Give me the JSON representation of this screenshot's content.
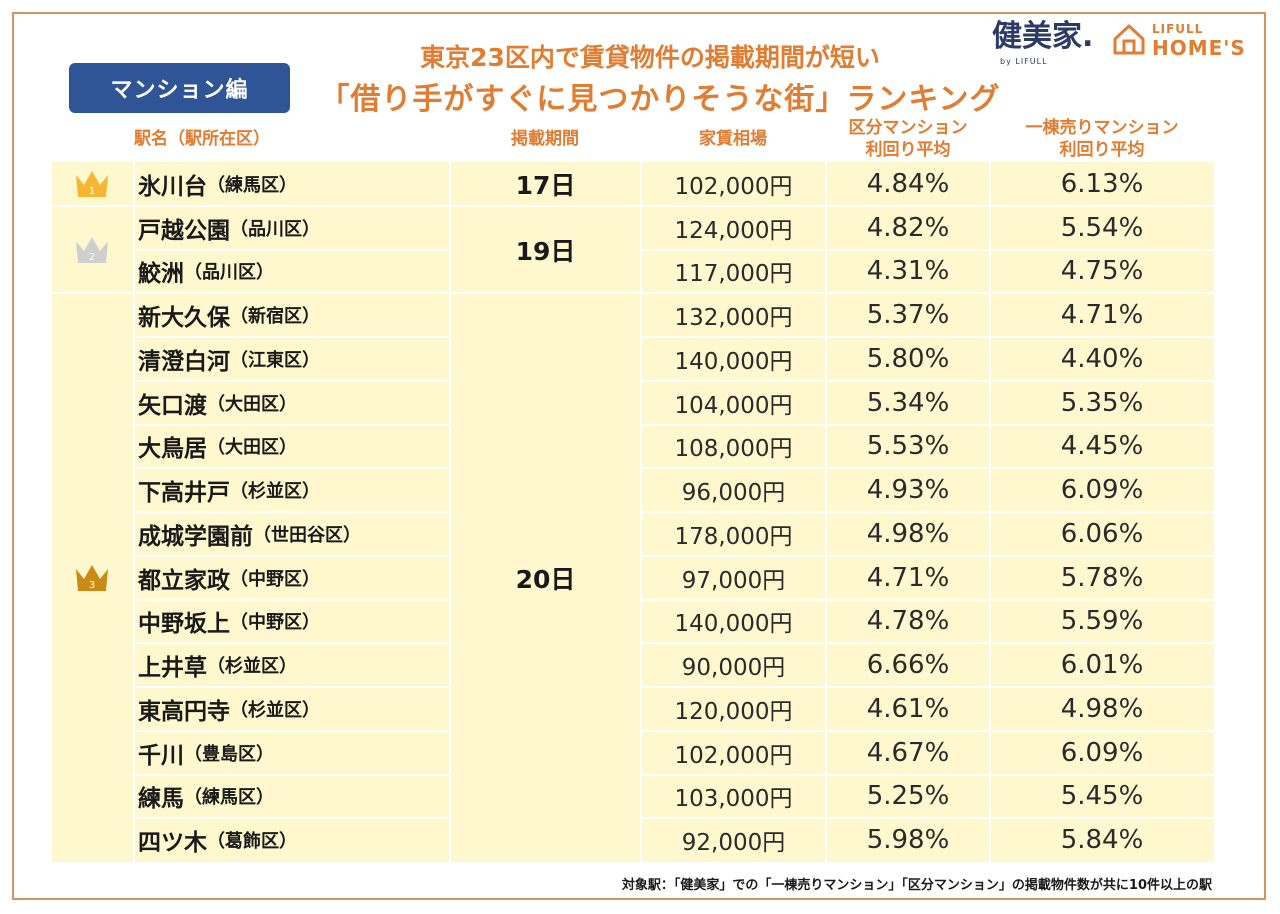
{
  "category_tag": "マンション編",
  "title_line1": "東京23区内で賃貸物件の掲載期間が短い",
  "title_line2": "「借り手がすぐに見つかりそうな街」ランキング",
  "logos": {
    "kenbiya": "健美家.",
    "kenbiya_sub": "by LIFULL",
    "lifull_top": "LIFULL",
    "lifull_bottom": "HOME'S"
  },
  "colors": {
    "accent": "#e17c31",
    "table_bg": "#fff8cf",
    "tag_bg": "#2f5597",
    "gold": "#f5b731",
    "silver": "#cfcfcf",
    "bronze": "#c98a16"
  },
  "headers": {
    "station": "駅名（駅所在区）",
    "period": "掲載期間",
    "rent": "家賃相場",
    "unit_yield_l1": "区分マンション",
    "unit_yield_l2": "利回り平均",
    "whole_yield_l1": "一棟売りマンション",
    "whole_yield_l2": "利回り平均"
  },
  "rank_groups": [
    {
      "rank": "1",
      "period": "17日"
    },
    {
      "rank": "2",
      "period": "19日"
    },
    {
      "rank": "3",
      "period": "20日"
    }
  ],
  "rows": [
    {
      "station": "氷川台",
      "ward": "（練馬区）",
      "rent": "102,000円",
      "unit_yield": "4.84%",
      "whole_yield": "6.13%"
    },
    {
      "station": "戸越公園",
      "ward": "（品川区）",
      "rent": "124,000円",
      "unit_yield": "4.82%",
      "whole_yield": "5.54%"
    },
    {
      "station": "鮫洲",
      "ward": "（品川区）",
      "rent": "117,000円",
      "unit_yield": "4.31%",
      "whole_yield": "4.75%"
    },
    {
      "station": "新大久保",
      "ward": "（新宿区）",
      "rent": "132,000円",
      "unit_yield": "5.37%",
      "whole_yield": "4.71%"
    },
    {
      "station": "清澄白河",
      "ward": "（江東区）",
      "rent": "140,000円",
      "unit_yield": "5.80%",
      "whole_yield": "4.40%"
    },
    {
      "station": "矢口渡",
      "ward": "（大田区）",
      "rent": "104,000円",
      "unit_yield": "5.34%",
      "whole_yield": "5.35%"
    },
    {
      "station": "大鳥居",
      "ward": "（大田区）",
      "rent": "108,000円",
      "unit_yield": "5.53%",
      "whole_yield": "4.45%"
    },
    {
      "station": "下高井戸",
      "ward": "（杉並区）",
      "rent": "96,000円",
      "unit_yield": "4.93%",
      "whole_yield": "6.09%"
    },
    {
      "station": "成城学園前",
      "ward": "（世田谷区）",
      "rent": "178,000円",
      "unit_yield": "4.98%",
      "whole_yield": "6.06%"
    },
    {
      "station": "都立家政",
      "ward": "（中野区）",
      "rent": "97,000円",
      "unit_yield": "4.71%",
      "whole_yield": "5.78%"
    },
    {
      "station": "中野坂上",
      "ward": "（中野区）",
      "rent": "140,000円",
      "unit_yield": "4.78%",
      "whole_yield": "5.59%"
    },
    {
      "station": "上井草",
      "ward": "（杉並区）",
      "rent": "90,000円",
      "unit_yield": "6.66%",
      "whole_yield": "6.01%"
    },
    {
      "station": "東高円寺",
      "ward": "（杉並区）",
      "rent": "120,000円",
      "unit_yield": "4.61%",
      "whole_yield": "4.98%"
    },
    {
      "station": "千川",
      "ward": "（豊島区）",
      "rent": "102,000円",
      "unit_yield": "4.67%",
      "whole_yield": "6.09%"
    },
    {
      "station": "練馬",
      "ward": "（練馬区）",
      "rent": "103,000円",
      "unit_yield": "5.25%",
      "whole_yield": "5.45%"
    },
    {
      "station": "四ツ木",
      "ward": "（葛飾区）",
      "rent": "92,000円",
      "unit_yield": "5.98%",
      "whole_yield": "5.84%"
    }
  ],
  "footnote": "対象駅：「健美家」での「一棟売りマンション」「区分マンション」の掲載物件数が共に10件以上の駅",
  "chart_data": {
    "type": "table",
    "title": "東京23区内で賃貸物件の掲載期間が短い「借り手がすぐに見つかりそうな街」ランキング",
    "columns": [
      "駅名（駅所在区）",
      "掲載期間",
      "家賃相場",
      "区分マンション利回り平均",
      "一棟売りマンション利回り平均"
    ],
    "ranks": [
      1,
      2,
      2,
      3,
      3,
      3,
      3,
      3,
      3,
      3,
      3,
      3,
      3,
      3,
      3,
      3
    ]
  }
}
